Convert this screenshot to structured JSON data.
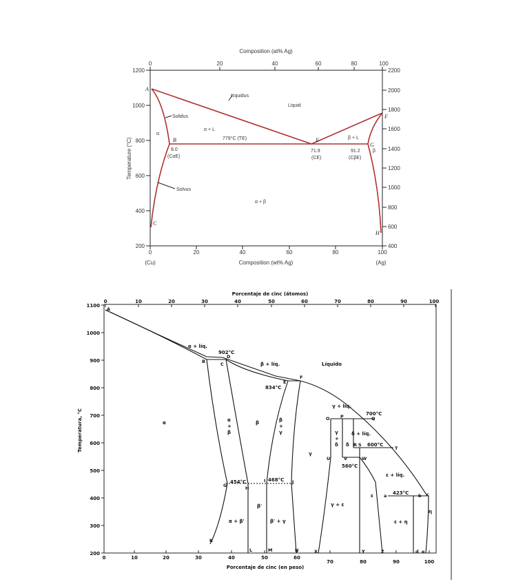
{
  "top": {
    "title_top": "Composition (at% Ag)",
    "title_bottom": "Composition (wt% Ag)",
    "ylabel_left": "Temperature (°C)",
    "ylabel_right": "",
    "top_ticks": [
      "0",
      "20",
      "40",
      "60",
      "80",
      "100"
    ],
    "bottom_ticks": [
      "0",
      "20",
      "40",
      "60",
      "80",
      "100"
    ],
    "left_ticks": [
      "200",
      "400",
      "600",
      "800",
      "1000",
      "1200"
    ],
    "right_ticks": [
      "400",
      "600",
      "800",
      "1000",
      "1200",
      "1400",
      "1600",
      "1800",
      "2000",
      "2200"
    ],
    "end_left": "(Cu)",
    "end_right": "(Ag)",
    "labels": {
      "liquidus": "Liquidus",
      "solidus": "Solidus",
      "solvus": "Solvus",
      "liquid": "Liquid",
      "alpha": "α",
      "alpha_l": "α + L",
      "beta_l": "β + L",
      "beta": "β",
      "alpha_beta": "α + β",
      "eutectic": "779°C (TE)",
      "b_val": "8.0",
      "b_sub": "(CαE)",
      "e_val": "71.9",
      "e_sub": "(CE)",
      "g_val": "91.2",
      "g_sub": "(CβE)"
    },
    "points": [
      "A",
      "B",
      "C",
      "E",
      "F",
      "G",
      "H"
    ]
  },
  "bottom": {
    "title_top": "Porcentaje de cinc (átomos)",
    "title_bottom": "Porcentaje de cinc (en peso)",
    "ylabel": "Temperatura, °C",
    "top_ticks": [
      "0",
      "10",
      "20",
      "30",
      "40",
      "50",
      "60",
      "70",
      "80",
      "90",
      "100"
    ],
    "bottom_ticks": [
      "0",
      "10",
      "20",
      "30",
      "40",
      "50",
      "60",
      "70",
      "80",
      "90",
      "100"
    ],
    "left_ticks": [
      "200",
      "300",
      "400",
      "500",
      "600",
      "700",
      "800",
      "900",
      "1000",
      "1100"
    ],
    "labels": {
      "liquido": "Líquido",
      "a_liq": "α + líq.",
      "b_liq": "β + líq.",
      "g_liq": "γ + líq.",
      "d_liq": "δ + líq.",
      "e_liq": "ε + líq.",
      "alpha": "α",
      "a_b": [
        "α",
        "+",
        "β"
      ],
      "beta": "β",
      "b_g": [
        "β",
        "+",
        "γ"
      ],
      "gamma": "γ",
      "g_d": [
        "γ",
        "+",
        "δ"
      ],
      "d": "δ",
      "bp": "β'",
      "a_bp": "α + β'",
      "bp_g": "β' + γ",
      "g_e": "γ + ε",
      "eps": "ε",
      "e_eta": "ε + η",
      "eta": "η",
      "t902": "902°C",
      "t834": "834°C",
      "t700": "700°C",
      "t600": "600°C",
      "t560": "560°C",
      "t454": "454°C",
      "t468": "468°C",
      "t423": "423°C"
    },
    "points": [
      "A",
      "B",
      "C",
      "D",
      "E",
      "F",
      "G",
      "H",
      "I",
      "J",
      "K",
      "L",
      "M",
      "N",
      "O",
      "P",
      "Q",
      "R",
      "S",
      "T",
      "U",
      "V",
      "W",
      "X",
      "Y",
      "Z",
      "a",
      "b",
      "c",
      "d",
      "e"
    ]
  }
}
